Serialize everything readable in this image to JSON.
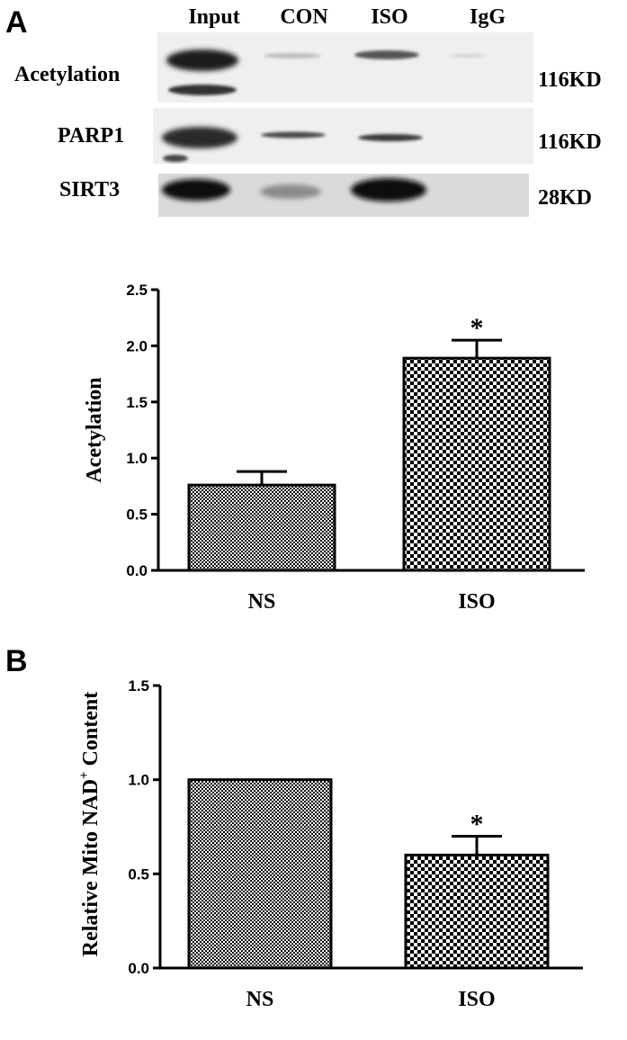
{
  "panel_a": {
    "letter": "A",
    "blot": {
      "lanes": [
        "Input",
        "CON",
        "ISO",
        "IgG"
      ],
      "rows": [
        {
          "label": "Acetylation",
          "size": "116KD"
        },
        {
          "label": "PARP1",
          "size": "116KD"
        },
        {
          "label": "SIRT3",
          "size": "28KD"
        }
      ]
    }
  },
  "panel_b": {
    "letter": "B"
  },
  "chart_data": [
    {
      "type": "bar",
      "panel": "A",
      "categories": [
        "NS",
        "ISO"
      ],
      "values": [
        0.76,
        1.89
      ],
      "errors": [
        0.12,
        0.16
      ],
      "significance": [
        "",
        "*"
      ],
      "patterns": [
        "fine-checker",
        "coarse-checker"
      ],
      "ylabel": "Acetylation",
      "xlabel": "",
      "ylim": [
        0,
        2.5
      ],
      "yticks": [
        "0.0",
        "0.5",
        "1.0",
        "1.5",
        "2.0",
        "2.5"
      ],
      "ytick_values": [
        0,
        0.5,
        1.0,
        1.5,
        2.0,
        2.5
      ]
    },
    {
      "type": "bar",
      "panel": "B",
      "categories": [
        "NS",
        "ISO"
      ],
      "values": [
        1.0,
        0.6
      ],
      "errors": [
        0,
        0.1
      ],
      "significance": [
        "",
        "*"
      ],
      "patterns": [
        "fine-checker",
        "coarse-checker"
      ],
      "ylabel_main": "Relative Mito NAD",
      "ylabel_sup": "+",
      "ylabel_tail": " Content",
      "xlabel": "",
      "ylim": [
        0,
        1.5
      ],
      "yticks": [
        "0.0",
        "0.5",
        "1.0",
        "1.5"
      ],
      "ytick_values": [
        0,
        0.5,
        1.0,
        1.5
      ]
    }
  ]
}
